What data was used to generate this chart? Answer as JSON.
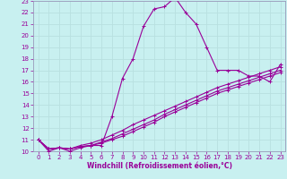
{
  "xlabel": "Windchill (Refroidissement éolien,°C)",
  "bg_color": "#c8f0f0",
  "line_color": "#990099",
  "grid_color": "#b8e0e0",
  "spine_color": "#9999bb",
  "xlim": [
    -0.5,
    23.5
  ],
  "ylim": [
    10,
    23
  ],
  "xticks": [
    0,
    1,
    2,
    3,
    4,
    5,
    6,
    7,
    8,
    9,
    10,
    11,
    12,
    13,
    14,
    15,
    16,
    17,
    18,
    19,
    20,
    21,
    22,
    23
  ],
  "yticks": [
    10,
    11,
    12,
    13,
    14,
    15,
    16,
    17,
    18,
    19,
    20,
    21,
    22,
    23
  ],
  "series": [
    [
      11,
      10,
      10.3,
      10,
      10.3,
      10.5,
      10.5,
      13.0,
      16.3,
      18.0,
      20.8,
      22.3,
      22.5,
      23.3,
      22.0,
      21.0,
      19.0,
      17.0,
      17.0,
      17.0,
      16.5,
      16.5,
      16.0,
      17.5
    ],
    [
      11,
      10.2,
      10.3,
      10.2,
      10.4,
      10.5,
      10.7,
      11.0,
      11.3,
      11.7,
      12.1,
      12.5,
      13.0,
      13.4,
      13.8,
      14.2,
      14.6,
      15.0,
      15.3,
      15.6,
      15.9,
      16.2,
      16.5,
      16.8
    ],
    [
      11,
      10.2,
      10.3,
      10.2,
      10.4,
      10.5,
      10.8,
      11.1,
      11.5,
      11.9,
      12.3,
      12.7,
      13.2,
      13.6,
      14.0,
      14.4,
      14.8,
      15.2,
      15.5,
      15.8,
      16.1,
      16.4,
      16.7,
      17.0
    ],
    [
      11,
      10.2,
      10.3,
      10.2,
      10.5,
      10.7,
      11.0,
      11.4,
      11.8,
      12.3,
      12.7,
      13.1,
      13.5,
      13.9,
      14.3,
      14.7,
      15.1,
      15.5,
      15.8,
      16.1,
      16.4,
      16.7,
      17.0,
      17.3
    ]
  ],
  "xlabel_fontsize": 5.5,
  "tick_fontsize": 5.0
}
